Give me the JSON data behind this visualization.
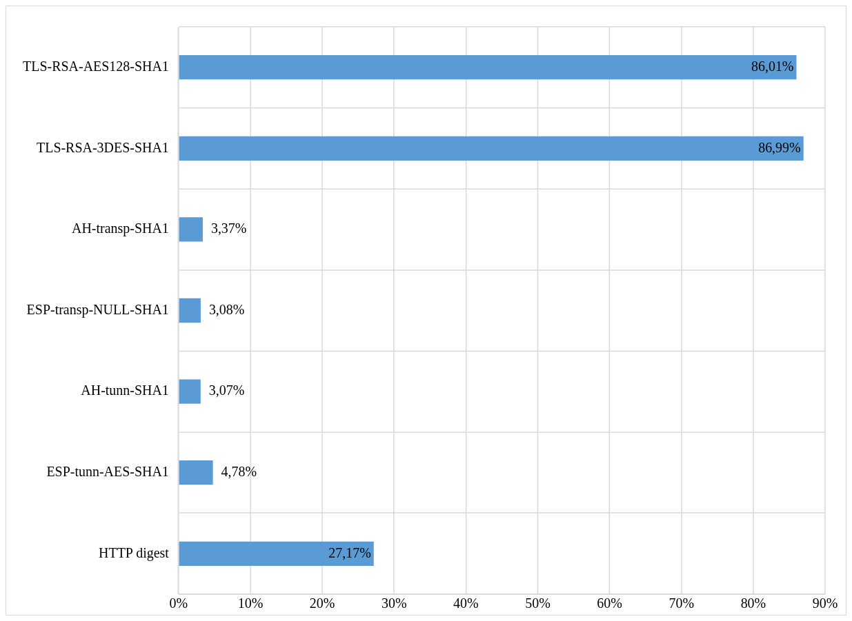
{
  "chart_data": {
    "type": "bar",
    "orientation": "horizontal",
    "categories": [
      "TLS-RSA-AES128-SHA1",
      "TLS-RSA-3DES-SHA1",
      "AH-transp-SHA1",
      "ESP-transp-NULL-SHA1",
      "AH-tunn-SHA1",
      "ESP-tunn-AES-SHA1",
      "HTTP digest"
    ],
    "values": [
      86.01,
      86.99,
      3.37,
      3.08,
      3.07,
      4.78,
      27.17
    ],
    "value_labels": [
      "86,01%",
      "86,99%",
      "3,37%",
      "3,08%",
      "3,07%",
      "4,78%",
      "27,17%"
    ],
    "color": "#5b9bd5",
    "xlim": [
      0,
      90
    ],
    "xticks": [
      {
        "value": 0,
        "label": "0%"
      },
      {
        "value": 10,
        "label": "10%"
      },
      {
        "value": 20,
        "label": "20%"
      },
      {
        "value": 30,
        "label": "30%"
      },
      {
        "value": 40,
        "label": "40%"
      },
      {
        "value": 50,
        "label": "50%"
      },
      {
        "value": 60,
        "label": "60%"
      },
      {
        "value": 70,
        "label": "70%"
      },
      {
        "value": 80,
        "label": "80%"
      },
      {
        "value": 90,
        "label": "90%"
      }
    ],
    "grid": true,
    "legend": false
  }
}
